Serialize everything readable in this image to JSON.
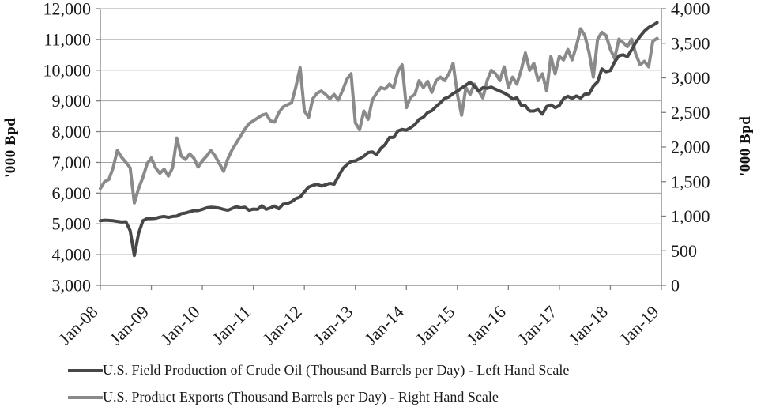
{
  "chart_data": {
    "type": "line",
    "title": "",
    "x_unit": "month",
    "x_start_label": "Jan-08",
    "x_end_label": "Dec-18",
    "grid": "horizontal",
    "legend_position": "bottom-left",
    "background_color": "#ffffff",
    "gridline_color": "#a3a3a3",
    "axis_color": "#7f7f7f",
    "text_color": "#1a1a1a",
    "x_tick_labels": [
      "Jan-08",
      "Jan-09",
      "Jan-10",
      "Jan-11",
      "Jan-12",
      "Jan-13",
      "Jan-14",
      "Jan-15",
      "Jan-16",
      "Jan-17",
      "Jan-18",
      "Jan-19"
    ],
    "left_axis": {
      "title": "'000 Bpd",
      "min": 3000,
      "max": 12000,
      "tick_step": 1000,
      "tick_labels": [
        "12,000",
        "11,000",
        "10,000",
        "9,000",
        "8,000",
        "7,000",
        "6,000",
        "5,000",
        "4,000",
        "3,000"
      ]
    },
    "right_axis": {
      "title": "'000 Bpd",
      "min": 0,
      "max": 4000,
      "tick_step": 500,
      "tick_labels": [
        "4,000",
        "3,500",
        "3,000",
        "2,500",
        "2,000",
        "1,500",
        "1,000",
        "500",
        "0"
      ]
    },
    "series": [
      {
        "key": "crude-production",
        "name": "U.S. Field Production of Crude Oil (Thousand Barrels per Day) - Left Hand Scale",
        "axis": "left",
        "color": "#474747",
        "values": [
          5100,
          5120,
          5110,
          5100,
          5080,
          5060,
          5070,
          4780,
          3970,
          4690,
          5100,
          5170,
          5170,
          5180,
          5220,
          5240,
          5210,
          5240,
          5250,
          5330,
          5350,
          5390,
          5430,
          5430,
          5470,
          5520,
          5540,
          5530,
          5510,
          5470,
          5440,
          5500,
          5560,
          5520,
          5540,
          5440,
          5480,
          5470,
          5590,
          5470,
          5520,
          5580,
          5490,
          5640,
          5660,
          5720,
          5820,
          5870,
          6040,
          6200,
          6250,
          6290,
          6230,
          6270,
          6320,
          6290,
          6540,
          6790,
          6930,
          7030,
          7050,
          7120,
          7200,
          7320,
          7340,
          7250,
          7460,
          7580,
          7810,
          7810,
          8020,
          8070,
          8050,
          8130,
          8230,
          8400,
          8470,
          8620,
          8680,
          8820,
          8940,
          9080,
          9130,
          9240,
          9320,
          9420,
          9510,
          9610,
          9480,
          9320,
          9430,
          9410,
          9450,
          9380,
          9320,
          9260,
          9180,
          9060,
          9100,
          8860,
          8840,
          8670,
          8670,
          8720,
          8570,
          8820,
          8870,
          8780,
          8850,
          9080,
          9150,
          9080,
          9160,
          9090,
          9220,
          9230,
          9480,
          9620,
          10040,
          9950,
          9990,
          10270,
          10470,
          10500,
          10440,
          10660,
          10910,
          11100,
          11270,
          11390,
          11460,
          11550
        ]
      },
      {
        "key": "product-exports",
        "name": "U.S. Product Exports (Thousand Barrels per Day) - Right Hand Scale",
        "axis": "right",
        "color": "#8a8a8a",
        "values": [
          1400,
          1500,
          1530,
          1700,
          1950,
          1850,
          1780,
          1700,
          1190,
          1400,
          1560,
          1760,
          1840,
          1700,
          1620,
          1680,
          1580,
          1700,
          2130,
          1870,
          1820,
          1900,
          1840,
          1710,
          1800,
          1870,
          1950,
          1870,
          1760,
          1650,
          1830,
          1960,
          2060,
          2160,
          2260,
          2340,
          2380,
          2420,
          2460,
          2480,
          2380,
          2360,
          2500,
          2580,
          2610,
          2640,
          2870,
          3150,
          2520,
          2430,
          2700,
          2780,
          2810,
          2760,
          2700,
          2760,
          2680,
          2820,
          2980,
          3060,
          2350,
          2250,
          2520,
          2400,
          2680,
          2780,
          2860,
          2840,
          2910,
          2860,
          3090,
          3190,
          2570,
          2720,
          2760,
          2960,
          2860,
          2950,
          2790,
          2960,
          3010,
          2960,
          3060,
          3210,
          2760,
          2460,
          2860,
          2760,
          2910,
          2810,
          2710,
          2960,
          3110,
          3060,
          2960,
          3160,
          2860,
          3010,
          2910,
          3110,
          3360,
          3110,
          3210,
          2960,
          3060,
          2810,
          3310,
          3060,
          3310,
          3260,
          3410,
          3260,
          3460,
          3710,
          3610,
          3360,
          3010,
          3560,
          3660,
          3610,
          3410,
          3280,
          3560,
          3510,
          3450,
          3560,
          3340,
          3190,
          3240,
          3160,
          3530,
          3570
        ]
      }
    ]
  }
}
